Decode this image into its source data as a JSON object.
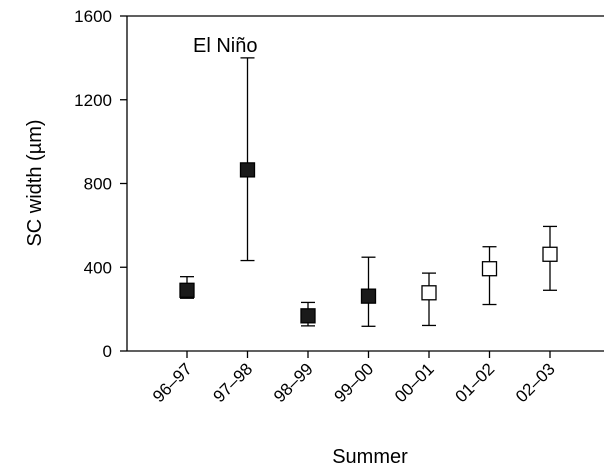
{
  "chart_data": {
    "type": "scatter",
    "xlabel": "Summer",
    "ylabel": "SC width (µm)",
    "ylim": [
      0,
      1600
    ],
    "yticks": [
      0,
      400,
      800,
      1200,
      1600
    ],
    "categories": [
      "96–97",
      "97–98",
      "98–99",
      "99–00",
      "00–01",
      "01–02",
      "02–03"
    ],
    "values": [
      290,
      865,
      168,
      262,
      278,
      393,
      462
    ],
    "error_low": [
      252,
      432,
      120,
      118,
      122,
      222,
      290
    ],
    "error_high": [
      355,
      1400,
      232,
      448,
      372,
      498,
      595
    ],
    "marker_fill": [
      "filled",
      "filled",
      "filled",
      "filled",
      "open",
      "open",
      "open"
    ],
    "annotation": {
      "text": "El Niño",
      "category": "97–98"
    },
    "grid": false,
    "colors": {
      "filled_marker": "#1a1a1a",
      "open_marker": "#ffffff",
      "stroke": "#000000"
    }
  }
}
